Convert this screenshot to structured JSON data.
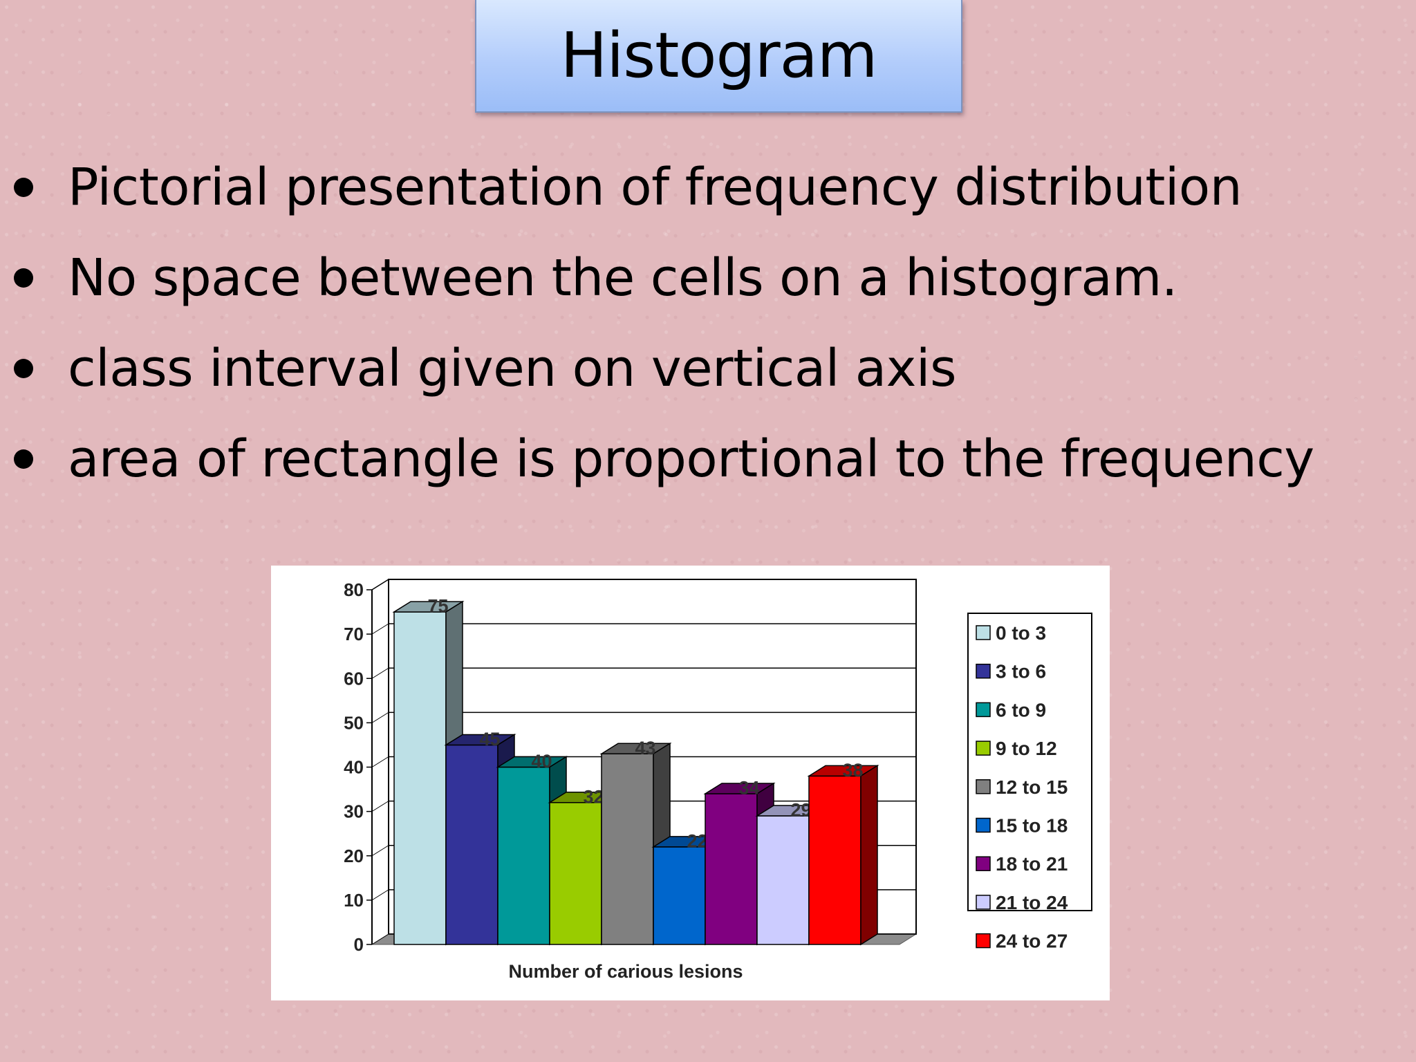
{
  "slide": {
    "title": "Histogram",
    "bullets": [
      "Pictorial presentation of frequency distribution",
      "No space between the cells on a histogram.",
      "class interval given on vertical axis",
      "area of rectangle is proportional to the frequency"
    ]
  },
  "chart_data": {
    "type": "bar",
    "style": "3d-clustered-column",
    "categories": [
      "0 to 3",
      "3 to 6",
      "6 to 9",
      "9 to 12",
      "12 to 15",
      "15 to 18",
      "18 to 21",
      "21 to 24",
      "24 to 27"
    ],
    "values": [
      75,
      45,
      40,
      32,
      43,
      22,
      34,
      29,
      38
    ],
    "colors": [
      "#bde0e6",
      "#333399",
      "#009999",
      "#99cc00",
      "#808080",
      "#0066cc",
      "#800080",
      "#ccccff",
      "#ff0000"
    ],
    "xlabel": "Number of carious lesions",
    "ylabel": "",
    "ylim": [
      0,
      80
    ],
    "yticks": [
      0,
      10,
      20,
      30,
      40,
      50,
      60,
      70,
      80
    ],
    "grid": true,
    "legend": "right",
    "data_labels": true
  }
}
